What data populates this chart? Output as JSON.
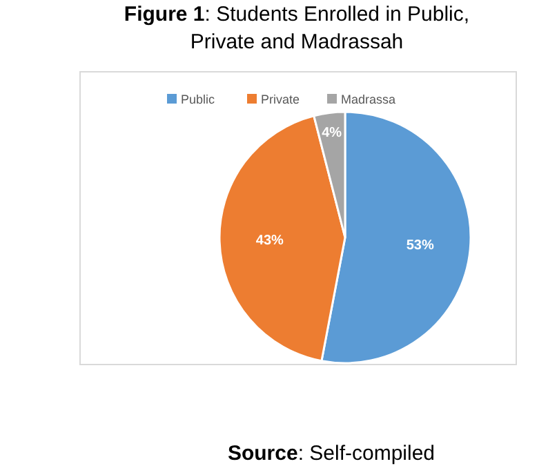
{
  "chart_data": {
    "type": "pie",
    "title": "Figure 1: Students Enrolled in Public, Private and Madrassah",
    "categories": [
      "Public",
      "Private",
      "Madrassa"
    ],
    "values": [
      53,
      43,
      4
    ],
    "colors": [
      "#5b9bd5",
      "#ed7d31",
      "#a5a5a5"
    ],
    "value_labels": [
      "53%",
      "43%",
      "4%"
    ],
    "legend": "top",
    "annotations": [
      "Source: Self-compiled"
    ]
  }
}
